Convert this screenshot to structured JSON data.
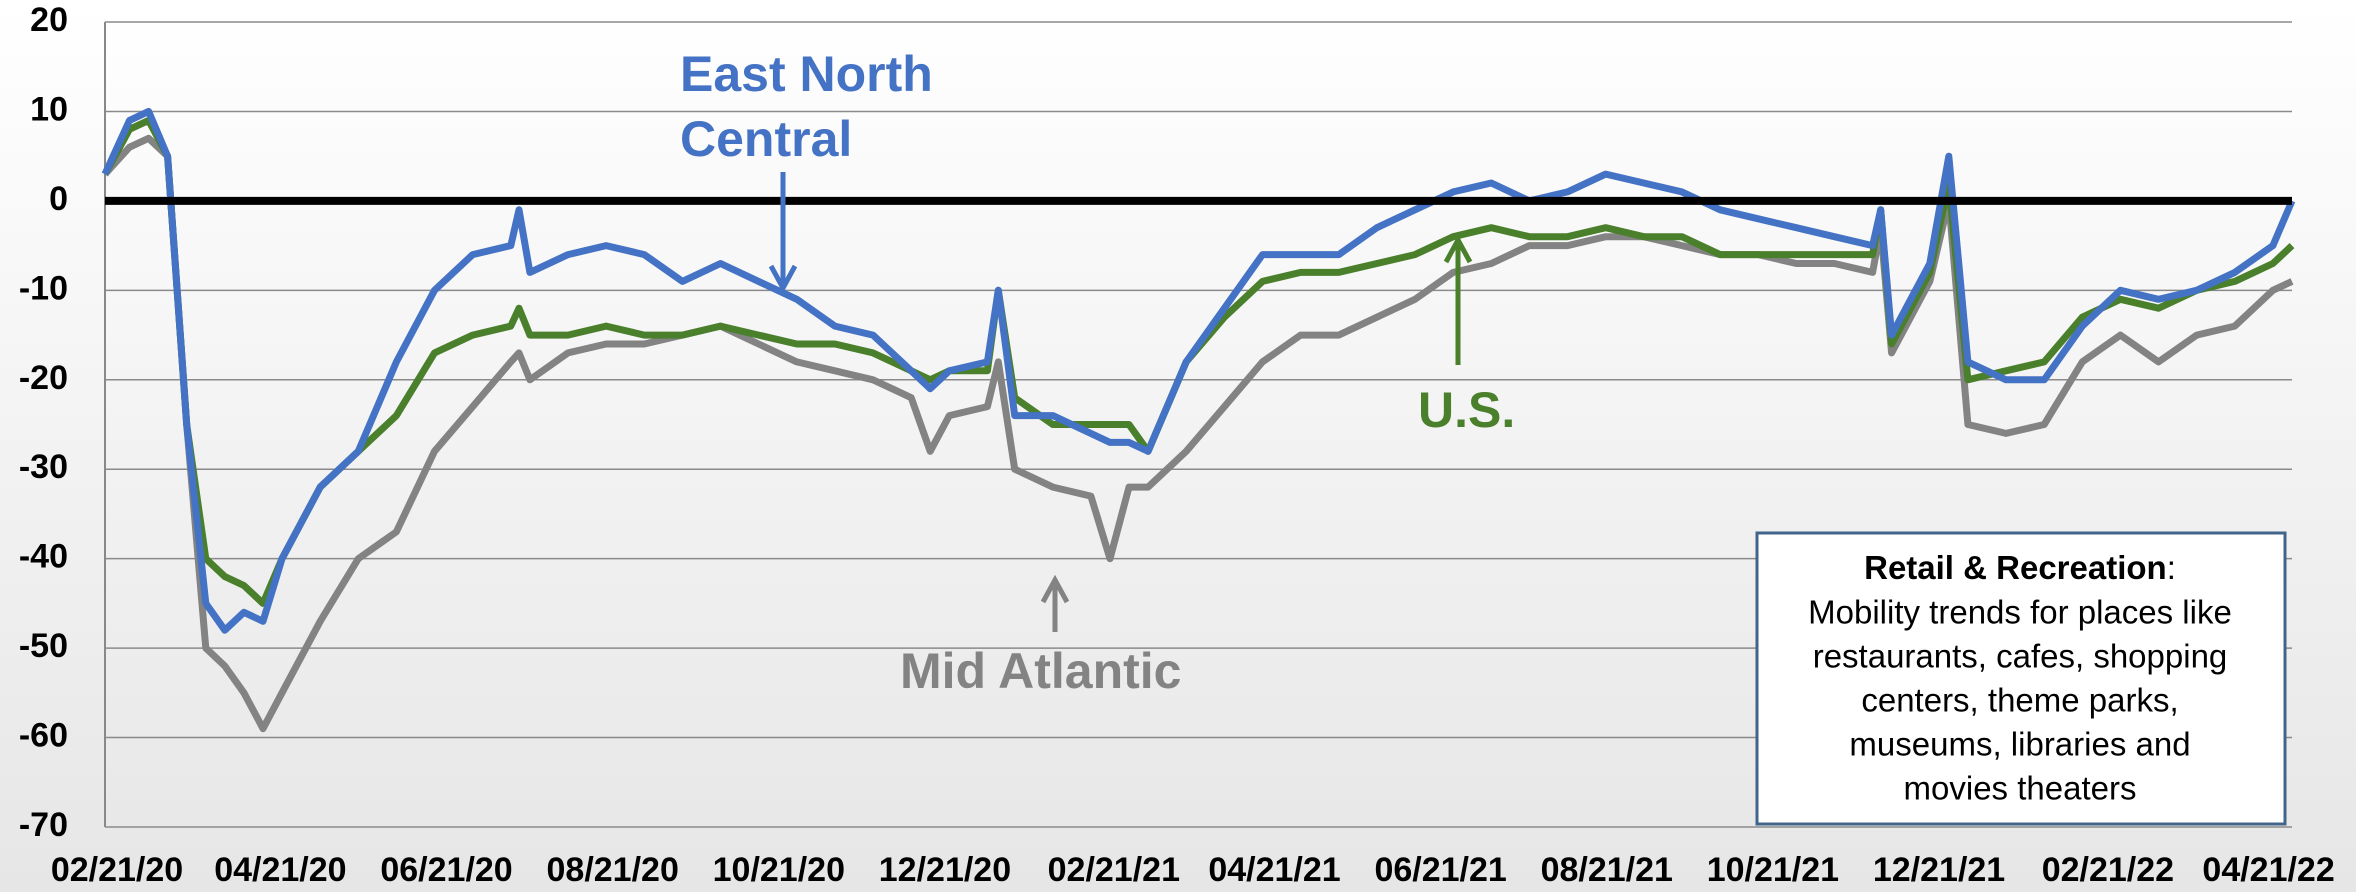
{
  "chart_data": {
    "type": "line",
    "annotations": {
      "east_north_central": [
        "East North",
        "Central"
      ],
      "us": "U.S.",
      "mid_atlantic": "Mid Atlantic"
    },
    "box": {
      "title": "Retail & Recreation",
      "separator": ":",
      "lines": [
        "Mobility trends for places like",
        "restaurants, cafes, shopping",
        "centers, theme parks,",
        "museums, libraries and",
        "movies theaters"
      ]
    },
    "x": [
      "2020-02-21",
      "2020-03-01",
      "2020-03-08",
      "2020-03-15",
      "2020-03-22",
      "2020-03-29",
      "2020-04-05",
      "2020-04-12",
      "2020-04-19",
      "2020-04-26",
      "2020-05-10",
      "2020-05-24",
      "2020-06-07",
      "2020-06-21",
      "2020-07-05",
      "2020-07-19",
      "2020-07-22",
      "2020-07-26",
      "2020-08-09",
      "2020-08-23",
      "2020-09-06",
      "2020-09-20",
      "2020-10-04",
      "2020-10-18",
      "2020-11-01",
      "2020-11-15",
      "2020-11-29",
      "2020-12-13",
      "2020-12-20",
      "2020-12-27",
      "2021-01-10",
      "2021-01-14",
      "2021-01-20",
      "2021-02-03",
      "2021-02-17",
      "2021-02-24",
      "2021-03-03",
      "2021-03-10",
      "2021-03-24",
      "2021-04-07",
      "2021-04-21",
      "2021-05-05",
      "2021-05-19",
      "2021-06-02",
      "2021-06-16",
      "2021-06-30",
      "2021-07-14",
      "2021-07-28",
      "2021-08-11",
      "2021-08-25",
      "2021-09-08",
      "2021-09-22",
      "2021-10-06",
      "2021-10-20",
      "2021-11-03",
      "2021-11-17",
      "2021-12-01",
      "2021-12-04",
      "2021-12-08",
      "2021-12-22",
      "2021-12-29",
      "2022-01-05",
      "2022-01-19",
      "2022-02-02",
      "2022-02-16",
      "2022-03-02",
      "2022-03-16",
      "2022-03-30",
      "2022-04-13",
      "2022-04-27",
      "2022-05-04"
    ],
    "series": [
      {
        "name": "Mid Atlantic",
        "color": "#838383",
        "values": [
          3,
          6,
          7,
          5,
          -25,
          -50,
          -52,
          -55,
          -59,
          -55,
          -47,
          -40,
          -37,
          -28,
          -23,
          -18,
          -17,
          -20,
          -17,
          -16,
          -16,
          -15,
          -14,
          -16,
          -18,
          -19,
          -20,
          -22,
          -28,
          -24,
          -23,
          -18,
          -30,
          -32,
          -33,
          -40,
          -32,
          -32,
          -28,
          -23,
          -18,
          -15,
          -15,
          -13,
          -11,
          -8,
          -7,
          -5,
          -5,
          -4,
          -4,
          -5,
          -6,
          -6,
          -7,
          -7,
          -8,
          -3,
          -17,
          -9,
          0,
          -25,
          -26,
          -25,
          -18,
          -15,
          -18,
          -15,
          -14,
          -10,
          -9
        ]
      },
      {
        "name": "U.S.",
        "color": "#4a7f2c",
        "values": [
          3,
          8,
          9,
          5,
          -25,
          -40,
          -42,
          -43,
          -45,
          -40,
          -32,
          -28,
          -24,
          -17,
          -15,
          -14,
          -12,
          -15,
          -15,
          -14,
          -15,
          -15,
          -14,
          -15,
          -16,
          -16,
          -17,
          -19,
          -20,
          -19,
          -19,
          -10,
          -22,
          -25,
          -25,
          -25,
          -25,
          -28,
          -18,
          -13,
          -9,
          -8,
          -8,
          -7,
          -6,
          -4,
          -3,
          -4,
          -4,
          -3,
          -4,
          -4,
          -6,
          -6,
          -6,
          -6,
          -6,
          -1,
          -16,
          -8,
          2,
          -20,
          -19,
          -18,
          -13,
          -11,
          -12,
          -10,
          -9,
          -7,
          -5
        ]
      },
      {
        "name": "East North Central",
        "color": "#4472c4",
        "values": [
          3,
          9,
          10,
          5,
          -25,
          -45,
          -48,
          -46,
          -47,
          -40,
          -32,
          -28,
          -18,
          -10,
          -6,
          -5,
          -1,
          -8,
          -6,
          -5,
          -6,
          -9,
          -7,
          -9,
          -11,
          -14,
          -15,
          -19,
          -21,
          -19,
          -18,
          -10,
          -24,
          -24,
          -26,
          -27,
          -27,
          -28,
          -18,
          -12,
          -6,
          -6,
          -6,
          -3,
          -1,
          1,
          2,
          0,
          1,
          3,
          2,
          1,
          -1,
          -2,
          -3,
          -4,
          -5,
          -1,
          -15,
          -7,
          5,
          -18,
          -20,
          -20,
          -14,
          -10,
          -11,
          -10,
          -8,
          -5,
          0
        ]
      }
    ],
    "xlim": [
      "2020-02-21",
      "2022-05-04"
    ],
    "xticks": [
      {
        "value": "2020-02-21",
        "label": "02/21/20"
      },
      {
        "value": "2020-04-21",
        "label": "04/21/20"
      },
      {
        "value": "2020-06-21",
        "label": "06/21/20"
      },
      {
        "value": "2020-08-21",
        "label": "08/21/20"
      },
      {
        "value": "2020-10-21",
        "label": "10/21/20"
      },
      {
        "value": "2020-12-21",
        "label": "12/21/20"
      },
      {
        "value": "2021-02-21",
        "label": "02/21/21"
      },
      {
        "value": "2021-04-21",
        "label": "04/21/21"
      },
      {
        "value": "2021-06-21",
        "label": "06/21/21"
      },
      {
        "value": "2021-08-21",
        "label": "08/21/21"
      },
      {
        "value": "2021-10-21",
        "label": "10/21/21"
      },
      {
        "value": "2021-12-21",
        "label": "12/21/21"
      },
      {
        "value": "2022-02-21",
        "label": "02/21/22"
      },
      {
        "value": "2022-04-21",
        "label": "04/21/22"
      }
    ],
    "ylim": [
      -70,
      20
    ],
    "yticks": [
      -70,
      -60,
      -50,
      -40,
      -30,
      -20,
      -10,
      0,
      10,
      20
    ],
    "grid": true,
    "zero_line": true
  }
}
